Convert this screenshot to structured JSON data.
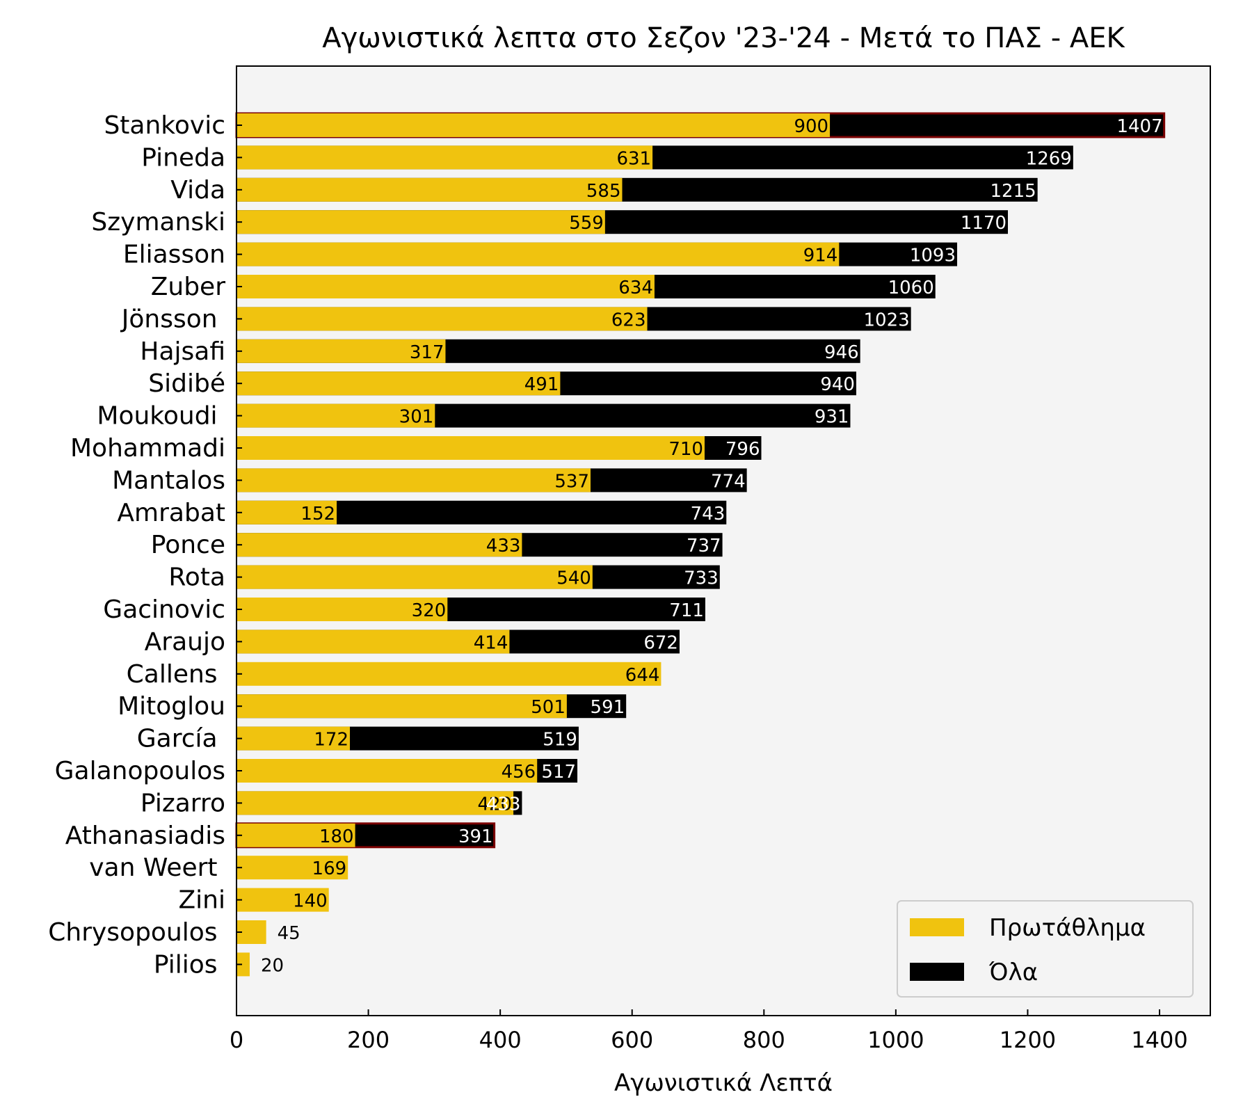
{
  "chart_data": {
    "type": "bar",
    "orientation": "horizontal",
    "title": "Αγωνιστικά λεπτα στο Σεζον '23-'24 - Μετά το ΠΑΣ - ΑΕΚ",
    "xlabel": "Αγωνιστικά Λεπτά",
    "ylabel": "",
    "xlim": [
      0,
      1477
    ],
    "xticks": [
      "0",
      "200",
      "400",
      "600",
      "800",
      "1000",
      "1200",
      "1400"
    ],
    "grid": false,
    "legend_position": "lower-right",
    "background_color": "#f4f4f4",
    "colors": {
      "league": "#f0c30f",
      "all": "#000000",
      "highlight": "#7a0000"
    },
    "categories": [
      "Stankovic",
      "Pineda",
      "Vida",
      "Szymanski",
      "Eliasson",
      "Zuber",
      "Jönsson ",
      "Hajsafi",
      "Sidibé",
      "Moukoudi ",
      "Mohammadi",
      "Mantalos",
      "Amrabat",
      "Ponce",
      "Rota",
      "Gacinovic",
      "Araujo",
      "Callens ",
      "Mitoglou",
      "García ",
      "Galanopoulos",
      "Pizarro",
      "Athanasiadis",
      "van Weert ",
      "Zini",
      "Chrysopoulos ",
      "Pilios "
    ],
    "series": [
      {
        "name": "Όλα",
        "values": [
          1407,
          1269,
          1215,
          1170,
          1093,
          1060,
          1023,
          946,
          940,
          931,
          796,
          774,
          743,
          737,
          733,
          711,
          672,
          null,
          591,
          519,
          517,
          433,
          391,
          null,
          null,
          null,
          null
        ]
      },
      {
        "name": "Πρωτάθλημα",
        "values": [
          900,
          631,
          585,
          559,
          914,
          634,
          623,
          317,
          491,
          301,
          710,
          537,
          152,
          433,
          540,
          320,
          414,
          644,
          501,
          172,
          456,
          420,
          180,
          169,
          140,
          45,
          20
        ]
      }
    ],
    "all_labels": [
      "1407",
      "1269",
      "1215",
      "1170",
      "1093",
      "1060",
      "1023",
      "946",
      "940",
      "931",
      "796",
      "774",
      "743",
      "737",
      "733",
      "711",
      "672",
      "",
      "591",
      "519",
      "517",
      "433",
      "391",
      "",
      "",
      "",
      ""
    ],
    "league_labels": [
      "900",
      "631",
      "585",
      "559",
      "914",
      "634",
      "623",
      "317",
      "491",
      "301",
      "710",
      "537",
      "152",
      "433",
      "540",
      "320",
      "414",
      "644",
      "501",
      "172",
      "456",
      "420",
      "180",
      "169",
      "140",
      "45",
      "20"
    ],
    "highlighted": [
      "Stankovic",
      "Athanasiadis"
    ]
  }
}
